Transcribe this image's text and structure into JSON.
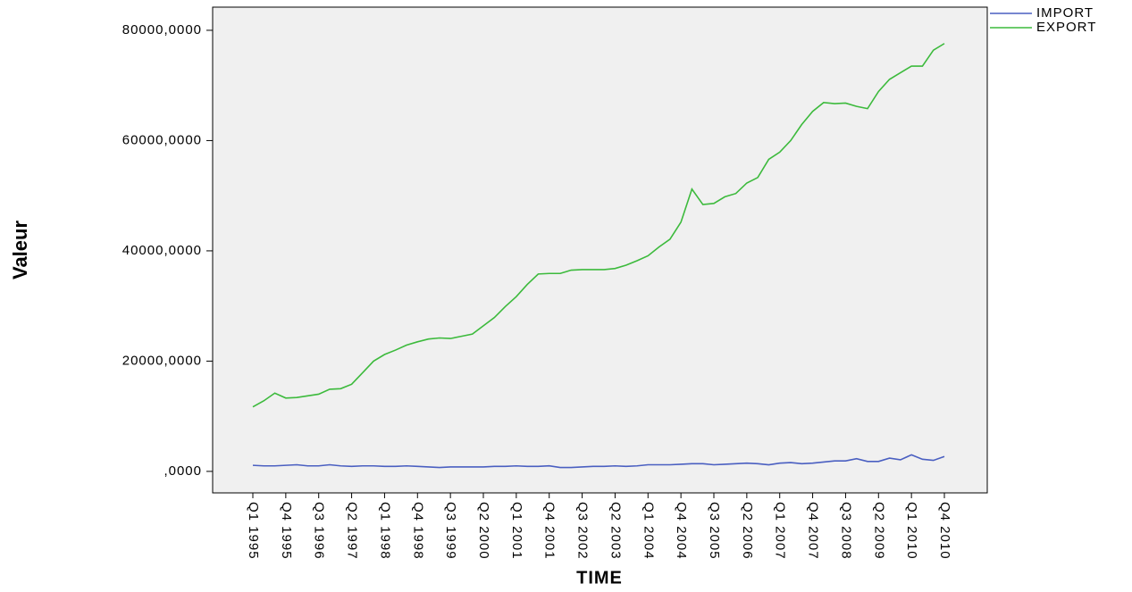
{
  "chart_data": {
    "type": "line",
    "xlabel": "TIME",
    "ylabel": "Valeur",
    "categories": [
      "Q1 1995",
      null,
      null,
      "Q4 1995",
      null,
      null,
      "Q3 1996",
      null,
      null,
      "Q2 1997",
      null,
      null,
      "Q1 1998",
      null,
      null,
      "Q4 1998",
      null,
      null,
      "Q3 1999",
      null,
      null,
      "Q2 2000",
      null,
      null,
      "Q1 2001",
      null,
      null,
      "Q4 2001",
      null,
      null,
      "Q3 2002",
      null,
      null,
      "Q2 2003",
      null,
      null,
      "Q1 2004",
      null,
      null,
      "Q4 2004",
      null,
      null,
      "Q3 2005",
      null,
      null,
      "Q2 2006",
      null,
      null,
      "Q1 2007",
      null,
      null,
      "Q4 2007",
      null,
      null,
      "Q3 2008",
      null,
      null,
      "Q2 2009",
      null,
      null,
      "Q1 2010",
      null,
      null,
      "Q4 2010"
    ],
    "series": [
      {
        "name": "IMPORT",
        "color": "#4a5fc1",
        "values": [
          1100,
          1000,
          1000,
          1100,
          1200,
          1000,
          1000,
          1200,
          1000,
          900,
          1000,
          1000,
          900,
          900,
          1000,
          900,
          800,
          700,
          800,
          800,
          800,
          800,
          900,
          900,
          1000,
          900,
          900,
          1000,
          700,
          700,
          800,
          900,
          900,
          1000,
          900,
          1000,
          1200,
          1200,
          1200,
          1300,
          1400,
          1400,
          1200,
          1300,
          1400,
          1500,
          1400,
          1200,
          1500,
          1600,
          1400,
          1500,
          1700,
          1900,
          1900,
          2300,
          1800,
          1800,
          2400,
          2100,
          3000,
          2200,
          2000,
          2700
        ]
      },
      {
        "name": "EXPORT",
        "color": "#3cba3c",
        "values": [
          11700,
          12800,
          14200,
          13300,
          13400,
          13700,
          14000,
          14900,
          15000,
          15800,
          17900,
          20000,
          21200,
          22000,
          22900,
          23500,
          24000,
          24200,
          24100,
          24500,
          24900,
          26400,
          27900,
          29900,
          31700,
          33900,
          35800,
          35900,
          35900,
          36500,
          36600,
          36600,
          36600,
          36800,
          37400,
          38200,
          39100,
          40700,
          42100,
          45200,
          51200,
          48400,
          48600,
          49800,
          50400,
          52300,
          53300,
          56600,
          57900,
          60000,
          62900,
          65300,
          66900,
          66700,
          66800,
          66200,
          65800,
          68900,
          71100,
          72300,
          73500,
          73500,
          76400,
          77600
        ]
      }
    ],
    "ylim": [
      -3900,
      84200
    ],
    "yticks": [
      {
        "value": 0,
        "label": ",0000"
      },
      {
        "value": 20000,
        "label": "20000,0000"
      },
      {
        "value": 40000,
        "label": "40000,0000"
      },
      {
        "value": 60000,
        "label": "60000,0000"
      },
      {
        "value": 80000,
        "label": "80000,0000"
      }
    ],
    "background": "#f0f0f0"
  }
}
